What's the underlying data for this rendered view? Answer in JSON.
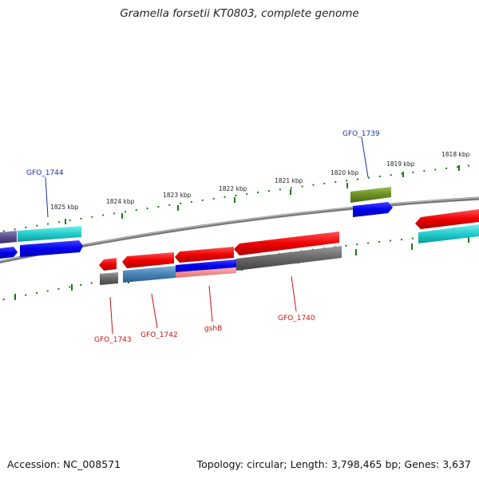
{
  "title": "Gramella forsetii KT0803, complete genome",
  "footer": {
    "accession": "Accession: NC_008571",
    "topology": "Topology: circular; Length: 3,798,465 bp; Genes: 3,637"
  },
  "scale_ticks": [
    "1818 kbp",
    "1819 kbp",
    "1820 kbp",
    "1821 kbp",
    "1822 kbp",
    "1823 kbp",
    "1824 kbp",
    "1825 kbp"
  ],
  "gene_labels": {
    "gfo_1739": "GFO_1739",
    "gfo_1744": "GFO_1744",
    "gfo_1743": "GFO_1743",
    "gfo_1742": "GFO_1742",
    "gshb": "gshB",
    "gfo_1740": "GFO_1740"
  },
  "colors": {
    "forward_label": "#1a2fa8",
    "reverse_label": "#cc1111",
    "backbone": "#808080",
    "tick": "#1a7a1a",
    "cds_red": "#ee0000",
    "cds_blue": "#0000ee",
    "cds_cyan": "#22cccc",
    "cds_gray": "#666666",
    "cds_olive": "#6b8e23",
    "cds_steel": "#4682b4",
    "cds_slate": "#5a4e8c"
  }
}
